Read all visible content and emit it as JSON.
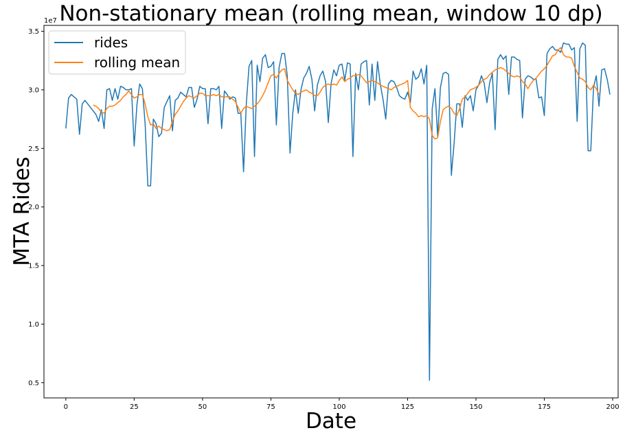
{
  "chart_data": {
    "type": "line",
    "title": "Non-stationary mean (rolling mean, window 10 dp)",
    "xlabel": "Date",
    "ylabel": "MTA Rides",
    "y_offset_label": "1e7",
    "xlim": [
      -8,
      202
    ],
    "ylim": [
      0.37,
      3.55
    ],
    "xticks": [
      0,
      25,
      50,
      75,
      100,
      125,
      150,
      175,
      200
    ],
    "yticks": [
      0.5,
      1.0,
      1.5,
      2.0,
      2.5,
      3.0,
      3.5
    ],
    "xtick_labels": [
      "0",
      "25",
      "50",
      "75",
      "100",
      "125",
      "150",
      "175",
      "200"
    ],
    "ytick_labels": [
      "0.5",
      "1.0",
      "1.5",
      "2.0",
      "2.5",
      "3.0",
      "3.5"
    ],
    "grid": false,
    "legend_position": "top-left",
    "series": [
      {
        "name": "rides",
        "color": "#1f77b4",
        "x_start": 0,
        "values": [
          2.67,
          2.93,
          2.96,
          2.94,
          2.92,
          2.62,
          2.88,
          2.91,
          2.88,
          2.85,
          2.82,
          2.79,
          2.73,
          2.83,
          2.67,
          3.0,
          3.01,
          2.91,
          3.01,
          2.92,
          3.03,
          3.02,
          3.0,
          3.0,
          3.01,
          2.52,
          2.87,
          3.05,
          3.01,
          2.71,
          2.18,
          2.18,
          2.75,
          2.71,
          2.6,
          2.63,
          2.85,
          2.9,
          2.95,
          2.65,
          2.91,
          2.93,
          2.98,
          2.96,
          2.94,
          3.02,
          3.02,
          2.85,
          2.92,
          3.03,
          3.01,
          3.01,
          2.71,
          3.01,
          3.01,
          3.0,
          3.03,
          2.67,
          2.99,
          2.96,
          2.92,
          2.94,
          2.93,
          2.8,
          2.8,
          2.3,
          2.88,
          3.2,
          3.25,
          2.43,
          3.21,
          3.07,
          3.27,
          3.3,
          3.19,
          3.2,
          3.24,
          2.7,
          3.19,
          3.31,
          3.31,
          3.12,
          2.46,
          2.8,
          3.0,
          2.8,
          3.0,
          3.1,
          3.14,
          3.2,
          3.09,
          2.82,
          3.04,
          3.12,
          3.16,
          3.07,
          2.72,
          3.05,
          3.17,
          3.12,
          3.21,
          3.22,
          3.08,
          3.23,
          3.22,
          2.43,
          3.14,
          3.0,
          3.22,
          3.24,
          3.25,
          2.87,
          3.22,
          2.91,
          3.24,
          3.05,
          2.92,
          2.75,
          3.05,
          3.08,
          3.07,
          3.02,
          2.95,
          2.93,
          2.92,
          2.98,
          2.89,
          3.16,
          3.09,
          3.11,
          3.18,
          3.05,
          3.21,
          0.52,
          2.84,
          3.01,
          2.6,
          3.02,
          3.14,
          3.15,
          3.13,
          2.27,
          2.54,
          2.88,
          2.88,
          2.68,
          2.95,
          2.91,
          2.95,
          2.82,
          3.0,
          3.04,
          3.12,
          3.06,
          2.89,
          3.06,
          3.14,
          2.66,
          3.26,
          3.3,
          3.26,
          3.29,
          2.96,
          3.28,
          3.28,
          3.26,
          3.25,
          2.76,
          3.09,
          3.12,
          3.11,
          3.09,
          3.09,
          2.93,
          2.94,
          2.78,
          3.31,
          3.35,
          3.37,
          3.34,
          3.34,
          3.32,
          3.4,
          3.39,
          3.39,
          3.34,
          3.36,
          2.73,
          3.35,
          3.4,
          3.38,
          2.48,
          2.48,
          3.02,
          3.12,
          2.86,
          3.17,
          3.18,
          3.09,
          2.96
        ]
      },
      {
        "name": "rolling mean",
        "color": "#ff7f0e",
        "x_start": 10,
        "values": [
          2.87,
          2.86,
          2.84,
          2.81,
          2.8,
          2.84,
          2.86,
          2.86,
          2.87,
          2.89,
          2.91,
          2.94,
          2.96,
          2.99,
          2.96,
          2.93,
          2.94,
          2.96,
          2.96,
          2.88,
          2.77,
          2.7,
          2.71,
          2.67,
          2.69,
          2.67,
          2.66,
          2.65,
          2.66,
          2.73,
          2.79,
          2.82,
          2.86,
          2.9,
          2.93,
          2.95,
          2.94,
          2.93,
          2.95,
          2.97,
          2.97,
          2.95,
          2.95,
          2.95,
          2.96,
          2.95,
          2.96,
          2.94,
          2.94,
          2.94,
          2.94,
          2.92,
          2.9,
          2.85,
          2.8,
          2.84,
          2.86,
          2.85,
          2.84,
          2.86,
          2.88,
          2.91,
          2.95,
          3.0,
          3.06,
          3.12,
          3.13,
          3.1,
          3.14,
          3.17,
          3.18,
          3.08,
          3.04,
          3.0,
          2.97,
          2.96,
          2.98,
          2.99,
          3.0,
          2.98,
          2.97,
          2.95,
          2.95,
          2.98,
          3.02,
          3.04,
          3.05,
          3.04,
          3.05,
          3.04,
          3.08,
          3.11,
          3.07,
          3.09,
          3.1,
          3.12,
          3.12,
          3.13,
          3.12,
          3.09,
          3.06,
          3.07,
          3.08,
          3.07,
          3.06,
          3.04,
          3.03,
          3.02,
          3.01,
          3.0,
          3.02,
          3.03,
          3.04,
          3.05,
          3.06,
          3.08,
          2.85,
          2.82,
          2.8,
          2.77,
          2.78,
          2.77,
          2.78,
          2.75,
          2.61,
          2.58,
          2.59,
          2.73,
          2.83,
          2.85,
          2.86,
          2.84,
          2.8,
          2.78,
          2.84,
          2.92,
          2.94,
          2.97,
          3.0,
          3.01,
          3.02,
          3.04,
          3.07,
          3.09,
          3.1,
          3.13,
          3.15,
          3.17,
          3.18,
          3.19,
          3.18,
          3.16,
          3.14,
          3.12,
          3.11,
          3.12,
          3.11,
          3.07,
          3.05,
          3.01,
          3.05,
          3.08,
          3.1,
          3.13,
          3.16,
          3.18,
          3.21,
          3.25,
          3.29,
          3.3,
          3.34,
          3.36,
          3.3,
          3.28,
          3.28,
          3.27,
          3.2,
          3.15,
          3.1,
          3.09,
          3.07,
          3.02,
          3.0,
          3.04,
          3.01,
          2.96
        ]
      }
    ]
  }
}
